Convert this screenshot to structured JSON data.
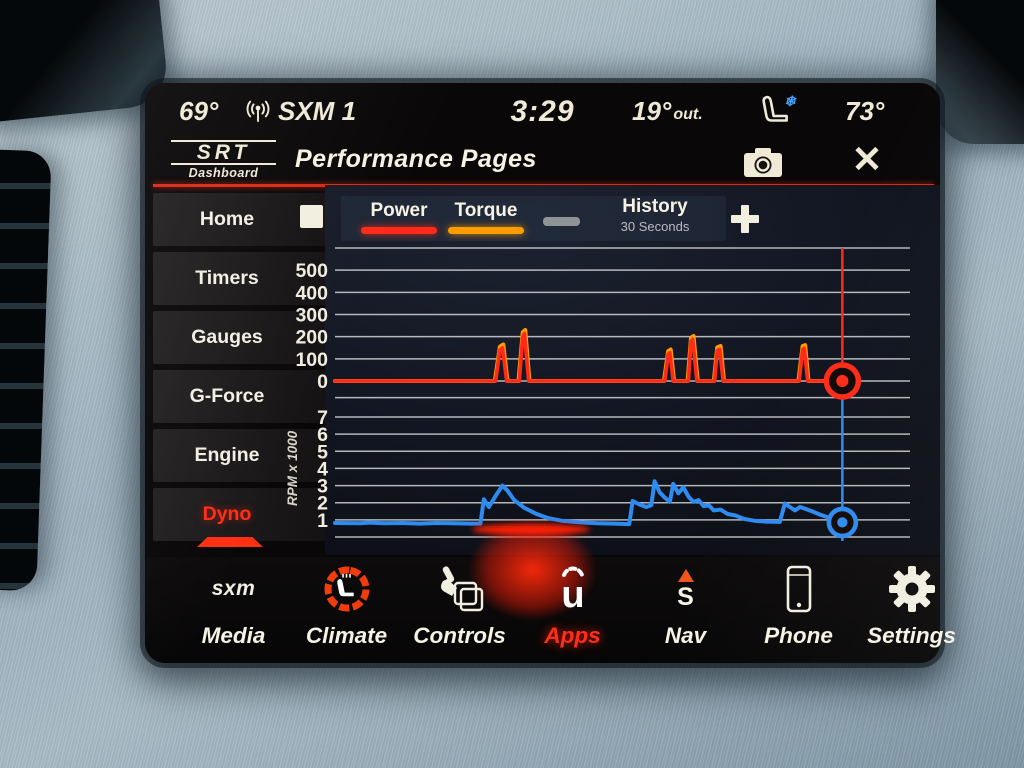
{
  "status_bar": {
    "driver_temp": "69°",
    "signal_icon": "antenna-broadcast-icon",
    "source": "SXM 1",
    "time": "3:29",
    "outside_temp": "19°",
    "outside_label": "out.",
    "seat_icon": "ventilated-seat-icon",
    "passenger_temp": "73°"
  },
  "title_bar": {
    "logo_top": "SRT",
    "logo_bottom": "Dashboard",
    "title": "Performance Pages"
  },
  "sidebar": {
    "items": [
      {
        "label": "Home",
        "active": false
      },
      {
        "label": "Timers",
        "active": false
      },
      {
        "label": "Gauges",
        "active": false
      },
      {
        "label": "G-Force",
        "active": false
      },
      {
        "label": "Engine",
        "active": false
      },
      {
        "label": "Dyno",
        "active": true
      }
    ]
  },
  "chart_header": {
    "legend": [
      {
        "label": "Power",
        "color": "#ff2b17"
      },
      {
        "label": "Torque",
        "color": "#ff9d00"
      }
    ],
    "history_label": "History",
    "history_value": "30 Seconds"
  },
  "chart_data": [
    {
      "type": "line",
      "name": "power-torque-history",
      "x_range": [
        0,
        34
      ],
      "cursor_x": 30,
      "ylim": [
        -75,
        620
      ],
      "yticks": [
        500,
        400,
        300,
        200,
        100,
        0
      ],
      "gridline_values": [
        600,
        500,
        400,
        300,
        200,
        100,
        0,
        -75
      ],
      "grid": true,
      "legend_position": "top",
      "series": [
        {
          "name": "Torque",
          "color": "#ff9d00",
          "points": [
            [
              0,
              0
            ],
            [
              9.45,
              0
            ],
            [
              9.75,
              155
            ],
            [
              9.95,
              165
            ],
            [
              10.2,
              0
            ],
            [
              10.85,
              0
            ],
            [
              11.1,
              220
            ],
            [
              11.25,
              230
            ],
            [
              11.5,
              0
            ],
            [
              19.45,
              0
            ],
            [
              19.7,
              135
            ],
            [
              19.85,
              142
            ],
            [
              20.05,
              0
            ],
            [
              20.85,
              0
            ],
            [
              21.05,
              195
            ],
            [
              21.2,
              203
            ],
            [
              21.45,
              0
            ],
            [
              22.4,
              0
            ],
            [
              22.6,
              152
            ],
            [
              22.8,
              158
            ],
            [
              23.0,
              0
            ],
            [
              27.4,
              0
            ],
            [
              27.65,
              158
            ],
            [
              27.8,
              162
            ],
            [
              28.0,
              0
            ],
            [
              30,
              0
            ]
          ]
        },
        {
          "name": "Power",
          "color": "#ff2b17",
          "points": [
            [
              0,
              0
            ],
            [
              9.5,
              0
            ],
            [
              9.75,
              140
            ],
            [
              9.9,
              150
            ],
            [
              10.15,
              0
            ],
            [
              10.9,
              0
            ],
            [
              11.1,
              200
            ],
            [
              11.2,
              215
            ],
            [
              11.45,
              0
            ],
            [
              19.5,
              0
            ],
            [
              19.7,
              120
            ],
            [
              19.8,
              128
            ],
            [
              20.0,
              0
            ],
            [
              20.9,
              0
            ],
            [
              21.05,
              180
            ],
            [
              21.15,
              188
            ],
            [
              21.4,
              0
            ],
            [
              22.45,
              0
            ],
            [
              22.6,
              138
            ],
            [
              22.75,
              143
            ],
            [
              22.95,
              0
            ],
            [
              27.45,
              0
            ],
            [
              27.65,
              142
            ],
            [
              27.75,
              148
            ],
            [
              27.95,
              0
            ],
            [
              30,
              0
            ]
          ]
        }
      ],
      "cursor_value": 0,
      "cursor_color": "#ff2b17"
    },
    {
      "type": "line",
      "name": "rpm-history",
      "ylabel": "RPM x 1000",
      "x_range": [
        0,
        34
      ],
      "cursor_x": 30,
      "ylim": [
        0,
        7.6
      ],
      "yticks": [
        7,
        6,
        5,
        4,
        3,
        2,
        1
      ],
      "gridline_values": [
        7,
        6,
        5,
        4,
        3,
        2,
        1,
        0
      ],
      "grid": true,
      "series": [
        {
          "name": "RPM",
          "color": "#2e8bf0",
          "points": [
            [
              0,
              0.82
            ],
            [
              1.5,
              0.8
            ],
            [
              2,
              0.84
            ],
            [
              3,
              0.8
            ],
            [
              4,
              0.82
            ],
            [
              5,
              0.78
            ],
            [
              6,
              0.82
            ],
            [
              7,
              0.8
            ],
            [
              8,
              0.78
            ],
            [
              8.6,
              0.78
            ],
            [
              8.8,
              2.2
            ],
            [
              9.1,
              1.75
            ],
            [
              9.5,
              2.4
            ],
            [
              9.9,
              3.0
            ],
            [
              10.2,
              2.7
            ],
            [
              10.6,
              2.15
            ],
            [
              11.2,
              1.7
            ],
            [
              11.9,
              1.35
            ],
            [
              12.6,
              1.1
            ],
            [
              13.4,
              0.95
            ],
            [
              14.5,
              0.85
            ],
            [
              15.5,
              0.8
            ],
            [
              16.5,
              0.78
            ],
            [
              17.4,
              0.75
            ],
            [
              17.6,
              2.1
            ],
            [
              18.0,
              1.9
            ],
            [
              18.4,
              1.75
            ],
            [
              18.7,
              1.85
            ],
            [
              18.9,
              3.25
            ],
            [
              19.2,
              2.6
            ],
            [
              19.5,
              2.3
            ],
            [
              19.8,
              2.05
            ],
            [
              20.0,
              3.1
            ],
            [
              20.3,
              2.55
            ],
            [
              20.6,
              2.9
            ],
            [
              20.9,
              2.35
            ],
            [
              21.2,
              2.05
            ],
            [
              21.5,
              2.15
            ],
            [
              21.8,
              1.8
            ],
            [
              22.1,
              1.85
            ],
            [
              22.4,
              1.55
            ],
            [
              22.8,
              1.6
            ],
            [
              23.2,
              1.35
            ],
            [
              23.7,
              1.25
            ],
            [
              24.2,
              1.05
            ],
            [
              24.8,
              0.95
            ],
            [
              25.5,
              0.9
            ],
            [
              26.3,
              0.88
            ],
            [
              26.6,
              1.95
            ],
            [
              26.9,
              1.75
            ],
            [
              27.2,
              1.55
            ],
            [
              27.5,
              1.75
            ],
            [
              27.8,
              1.65
            ],
            [
              28.2,
              1.5
            ],
            [
              28.7,
              1.3
            ],
            [
              29.3,
              1.1
            ],
            [
              29.8,
              0.92
            ],
            [
              30,
              0.85
            ]
          ]
        }
      ],
      "cursor_value": 0.85,
      "cursor_color": "#2e8bf0"
    }
  ],
  "bottom_nav": {
    "source_text": "sxm",
    "items": [
      {
        "label": "Media",
        "icon": "media-source-text",
        "active": false
      },
      {
        "label": "Climate",
        "icon": "climate-seat-dial-icon",
        "active": false
      },
      {
        "label": "Controls",
        "icon": "hand-controls-icon",
        "active": false
      },
      {
        "label": "Apps",
        "icon": "uconnect-apps-icon",
        "active": true
      },
      {
        "label": "Nav",
        "icon": "compass-south-icon",
        "active": false
      },
      {
        "label": "Phone",
        "icon": "phone-icon",
        "active": false
      },
      {
        "label": "Settings",
        "icon": "gear-icon",
        "active": false
      }
    ]
  },
  "colors": {
    "accent_red": "#ff2b17",
    "torque_orange": "#ff9d00",
    "rpm_blue": "#2e8bf0",
    "cream_text": "#f2efe0",
    "gridline": "#dde1e4"
  }
}
